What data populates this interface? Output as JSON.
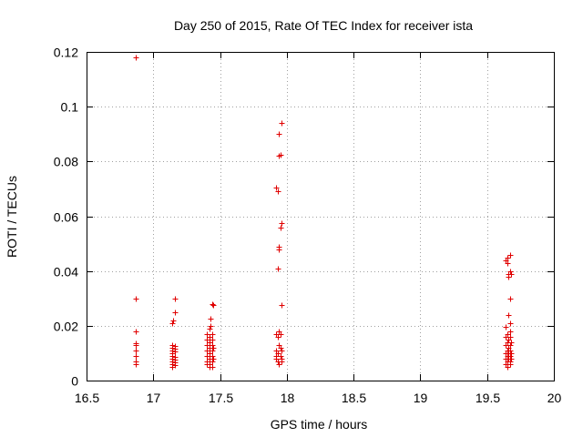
{
  "chart_data": {
    "type": "scatter",
    "title": "Day 250 of 2015, Rate Of TEC Index for receiver ista",
    "xlabel": "GPS time / hours",
    "ylabel": "ROTI / TECUs",
    "xlim": [
      16.5,
      20
    ],
    "ylim": [
      0,
      0.12
    ],
    "xticks": [
      16.5,
      17,
      17.5,
      18,
      18.5,
      19,
      19.5,
      20
    ],
    "xtick_labels": [
      "16.5",
      "17",
      "17.5",
      "18",
      "18.5",
      "19",
      "19.5",
      "20"
    ],
    "yticks": [
      0,
      0.02,
      0.04,
      0.06,
      0.08,
      0.1,
      0.12
    ],
    "ytick_labels": [
      "0",
      "0.02",
      "0.04",
      "0.06",
      "0.08",
      "0.1",
      "0.12"
    ],
    "grid": true,
    "marker": "+",
    "color": "#e00000",
    "series": [
      {
        "name": "ROTI",
        "points": [
          [
            16.87,
            0.118
          ],
          [
            16.87,
            0.03
          ],
          [
            16.87,
            0.018
          ],
          [
            16.87,
            0.0135
          ],
          [
            16.87,
            0.013
          ],
          [
            16.87,
            0.011
          ],
          [
            16.87,
            0.009
          ],
          [
            16.87,
            0.007
          ],
          [
            16.87,
            0.006
          ],
          [
            17.14,
            0.021
          ],
          [
            17.14,
            0.013
          ],
          [
            17.14,
            0.012
          ],
          [
            17.14,
            0.011
          ],
          [
            17.14,
            0.01
          ],
          [
            17.14,
            0.009
          ],
          [
            17.14,
            0.008
          ],
          [
            17.14,
            0.007
          ],
          [
            17.14,
            0.006
          ],
          [
            17.14,
            0.005
          ],
          [
            17.15,
            0.022
          ],
          [
            17.16,
            0.03
          ],
          [
            17.16,
            0.025
          ],
          [
            17.16,
            0.0125
          ],
          [
            17.16,
            0.0115
          ],
          [
            17.16,
            0.0105
          ],
          [
            17.16,
            0.0085
          ],
          [
            17.16,
            0.0075
          ],
          [
            17.16,
            0.0065
          ],
          [
            17.16,
            0.0055
          ],
          [
            17.4,
            0.017
          ],
          [
            17.4,
            0.015
          ],
          [
            17.4,
            0.013
          ],
          [
            17.4,
            0.011
          ],
          [
            17.4,
            0.009
          ],
          [
            17.4,
            0.007
          ],
          [
            17.4,
            0.006
          ],
          [
            17.42,
            0.019
          ],
          [
            17.42,
            0.016
          ],
          [
            17.42,
            0.014
          ],
          [
            17.42,
            0.012
          ],
          [
            17.42,
            0.01
          ],
          [
            17.42,
            0.008
          ],
          [
            17.42,
            0.006
          ],
          [
            17.42,
            0.005
          ],
          [
            17.43,
            0.0225
          ],
          [
            17.43,
            0.02
          ],
          [
            17.44,
            0.028
          ],
          [
            17.44,
            0.017
          ],
          [
            17.44,
            0.015
          ],
          [
            17.44,
            0.013
          ],
          [
            17.44,
            0.011
          ],
          [
            17.44,
            0.009
          ],
          [
            17.44,
            0.007
          ],
          [
            17.44,
            0.005
          ],
          [
            17.45,
            0.0275
          ],
          [
            17.45,
            0.012
          ],
          [
            17.45,
            0.008
          ],
          [
            17.92,
            0.0705
          ],
          [
            17.92,
            0.017
          ],
          [
            17.92,
            0.011
          ],
          [
            17.92,
            0.009
          ],
          [
            17.92,
            0.008
          ],
          [
            17.93,
            0.069
          ],
          [
            17.93,
            0.041
          ],
          [
            17.93,
            0.016
          ],
          [
            17.93,
            0.01
          ],
          [
            17.93,
            0.007
          ],
          [
            17.94,
            0.09
          ],
          [
            17.94,
            0.082
          ],
          [
            17.94,
            0.049
          ],
          [
            17.94,
            0.048
          ],
          [
            17.94,
            0.018
          ],
          [
            17.94,
            0.013
          ],
          [
            17.94,
            0.006
          ],
          [
            17.95,
            0.0825
          ],
          [
            17.95,
            0.056
          ],
          [
            17.95,
            0.017
          ],
          [
            17.95,
            0.012
          ],
          [
            17.95,
            0.009
          ],
          [
            17.96,
            0.094
          ],
          [
            17.96,
            0.0575
          ],
          [
            17.96,
            0.0275
          ],
          [
            17.96,
            0.011
          ],
          [
            17.96,
            0.008
          ],
          [
            17.96,
            0.007
          ],
          [
            19.64,
            0.044
          ],
          [
            19.64,
            0.0195
          ],
          [
            19.64,
            0.016
          ],
          [
            19.64,
            0.013
          ],
          [
            19.64,
            0.01
          ],
          [
            19.64,
            0.008
          ],
          [
            19.64,
            0.006
          ],
          [
            19.65,
            0.045
          ],
          [
            19.65,
            0.043
          ],
          [
            19.65,
            0.017
          ],
          [
            19.65,
            0.014
          ],
          [
            19.65,
            0.011
          ],
          [
            19.65,
            0.009
          ],
          [
            19.65,
            0.007
          ],
          [
            19.65,
            0.005
          ],
          [
            19.66,
            0.039
          ],
          [
            19.66,
            0.038
          ],
          [
            19.66,
            0.024
          ],
          [
            19.66,
            0.015
          ],
          [
            19.66,
            0.012
          ],
          [
            19.66,
            0.01
          ],
          [
            19.66,
            0.008
          ],
          [
            19.67,
            0.046
          ],
          [
            19.67,
            0.04
          ],
          [
            19.67,
            0.03
          ],
          [
            19.67,
            0.021
          ],
          [
            19.67,
            0.018
          ],
          [
            19.67,
            0.016
          ],
          [
            19.67,
            0.013
          ],
          [
            19.67,
            0.011
          ],
          [
            19.67,
            0.009
          ],
          [
            19.67,
            0.007
          ],
          [
            19.67,
            0.006
          ],
          [
            19.68,
            0.039
          ],
          [
            19.68,
            0.014
          ],
          [
            19.68,
            0.01
          ],
          [
            19.68,
            0.008
          ]
        ]
      }
    ]
  }
}
